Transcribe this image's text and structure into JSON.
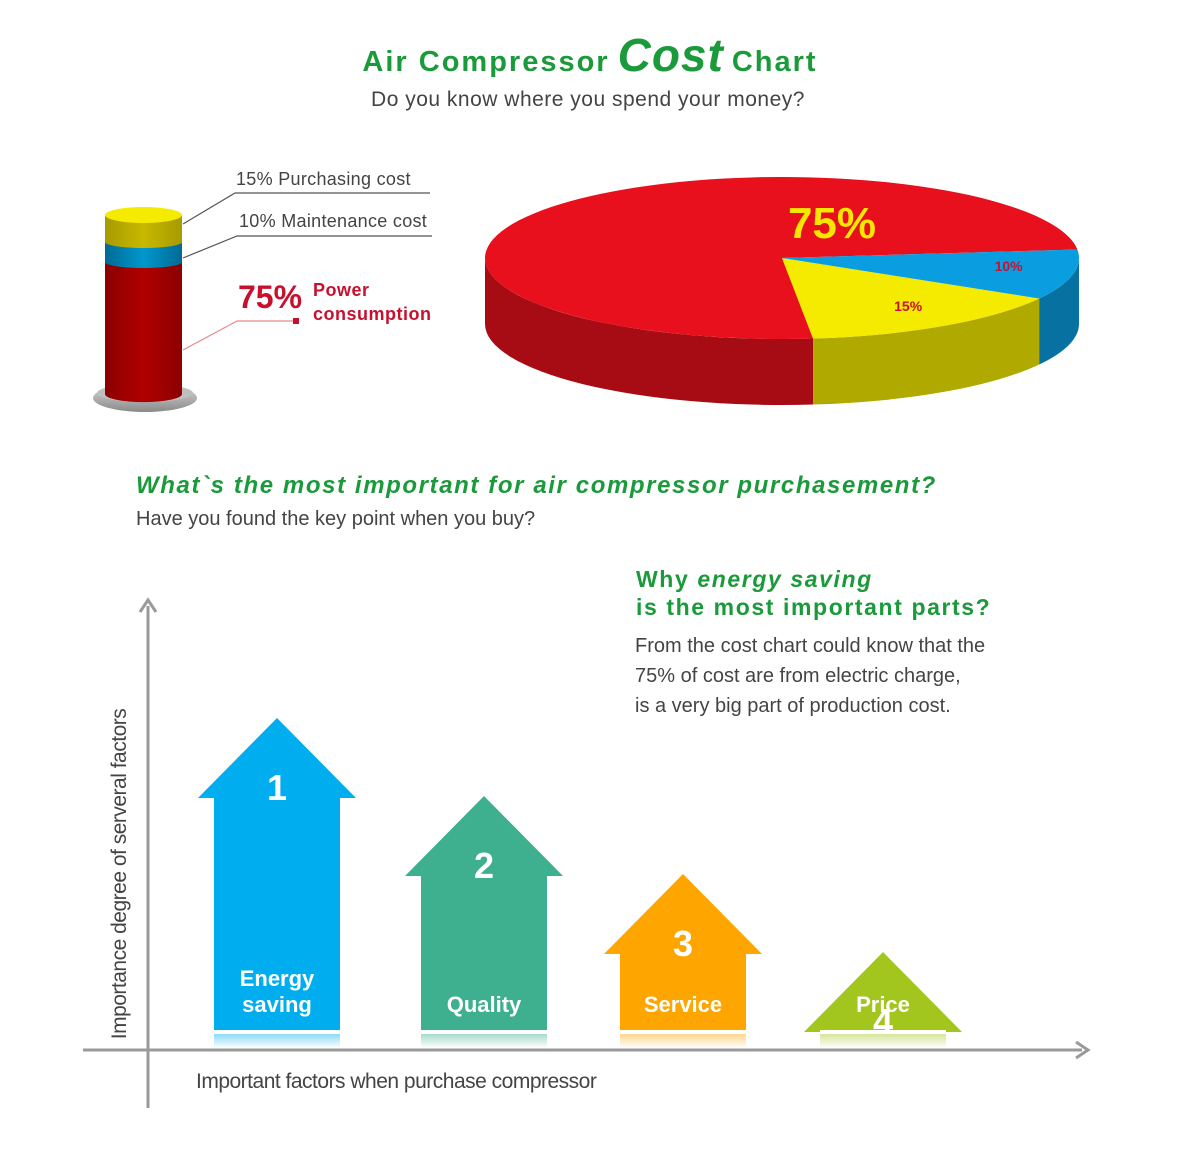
{
  "header": {
    "title_part1": "Air Compressor",
    "title_part2": "Cost",
    "title_part3": "Chart",
    "subtitle": "Do you know where you spend your money?"
  },
  "cost_legend": {
    "purchasing": "15%  Purchasing cost",
    "maintenance": "10%  Maintenance cost",
    "power_pct": "75%",
    "power_line1": "Power",
    "power_line2": "consumption"
  },
  "question": {
    "title": "What`s the most important for air compressor purchasement?",
    "subtitle": "Have you found the key point when you buy?"
  },
  "why": {
    "line1_a": "Why ",
    "line1_b": "energy saving",
    "line2": "is the most important parts?",
    "p1": "From the cost chart could know that the",
    "p2": "75% of cost are from electric charge,",
    "p3": "is a very big part of production cost."
  },
  "colors": {
    "green": "#1a9a3a",
    "red": "#c8102e",
    "yellow": "#f5eb00",
    "blue": "#0a9ee0",
    "arrow_blue": "#00aeef",
    "arrow_green": "#3fb08f",
    "arrow_orange": "#ffa500",
    "arrow_lime": "#a3c61f"
  },
  "chart_data": [
    {
      "type": "pie",
      "slices": [
        {
          "label": "Power consumption",
          "value": 75,
          "display": "75%",
          "color": "#e8101c"
        },
        {
          "label": "Purchasing cost",
          "value": 15,
          "display": "15%",
          "color": "#f5eb00"
        },
        {
          "label": "Maintenance cost",
          "value": 10,
          "display": "10%",
          "color": "#0a9ee0"
        }
      ]
    },
    {
      "type": "bar",
      "title": "",
      "xlabel": "Important factors when purchase compressor",
      "ylabel": "Importance degree of serveral factors",
      "categories": [
        "Energy saving",
        "Quality",
        "Service",
        "Price"
      ],
      "ranks": [
        "1",
        "2",
        "3",
        "4"
      ],
      "label_lines": [
        [
          "Energy",
          "saving"
        ],
        [
          "Quality"
        ],
        [
          "Service"
        ],
        [
          "Price"
        ]
      ],
      "values": [
        4,
        3,
        2,
        1
      ],
      "colors": [
        "#00aeef",
        "#3fb08f",
        "#ffa500",
        "#a3c61f"
      ]
    }
  ]
}
